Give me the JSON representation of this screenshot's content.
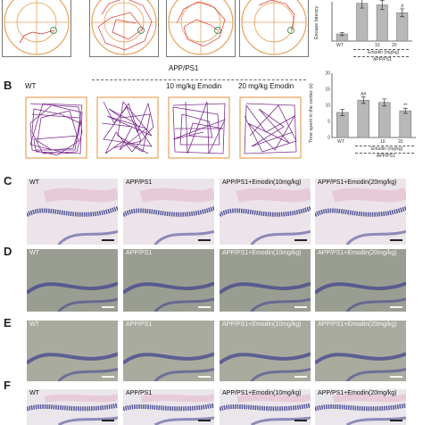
{
  "panels": {
    "A": {
      "letter": ""
    },
    "B": {
      "letter": "B",
      "group_header": "APP/PS1",
      "track_labels": [
        "WT",
        "",
        "10 mg/kg Emodin",
        "20 mg/kg Emodin"
      ]
    },
    "C": {
      "letter": "C"
    },
    "D": {
      "letter": "D"
    },
    "E": {
      "letter": "E"
    },
    "F": {
      "letter": "F"
    }
  },
  "micro_labels": [
    "WT",
    "APP/PS1",
    "APP/PS1+Emodin(10mg/kg)",
    "APP/PS1+Emodin(20mg/kg)"
  ],
  "colors": {
    "stain_C": "#ece4ea",
    "stain_D": "#9a9e92",
    "stain_E": "#a9ab9f",
    "stain_F": "#ebe5ec",
    "cells": "#3c3f8c",
    "track": "#7c2f8c",
    "arena": "#e8a25a"
  },
  "chart_data": [
    {
      "type": "bar",
      "ylabel": "Escape latency",
      "categories": [
        "WT",
        "",
        "10",
        "20"
      ],
      "values": [
        9,
        48,
        46,
        36
      ],
      "errors": [
        2,
        6,
        6,
        5
      ],
      "significance": [
        "",
        "",
        "",
        "#"
      ],
      "ylim": [
        0,
        50
      ],
      "yticks": [],
      "x_group_label": "Emodin (mg/kg)",
      "x_subgroup_label": "APP/PS1"
    },
    {
      "type": "bar",
      "ylabel": "Time spent in the center (s)",
      "categories": [
        "WT",
        "",
        "10",
        "20"
      ],
      "values": [
        7.8,
        11.6,
        10.9,
        8.3
      ],
      "errors": [
        1.0,
        1.0,
        1.1,
        0.8
      ],
      "significance": [
        "",
        "##",
        "",
        "**"
      ],
      "ylim": [
        0,
        20
      ],
      "yticks": [
        "0",
        "5",
        "10",
        "15",
        "20"
      ],
      "x_group_label": "Emodin (mg/kg)",
      "x_subgroup_label": "APP/PS1"
    }
  ]
}
